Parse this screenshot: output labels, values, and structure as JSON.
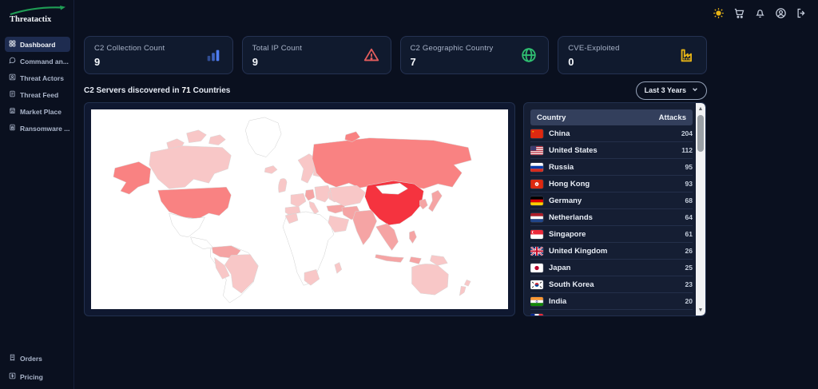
{
  "brand": {
    "name": "Threatactix"
  },
  "topbar": {
    "icons": [
      "theme-sun",
      "cart",
      "notifications",
      "account",
      "logout"
    ]
  },
  "sidebar": {
    "items": [
      {
        "label": "Dashboard",
        "icon": "dashboard-grid",
        "active": true
      },
      {
        "label": "Command an...",
        "icon": "chat-bubble",
        "active": false
      },
      {
        "label": "Threat Actors",
        "icon": "user-card",
        "active": false
      },
      {
        "label": "Threat Feed",
        "icon": "document",
        "active": false
      },
      {
        "label": "Market Place",
        "icon": "storefront",
        "active": false
      },
      {
        "label": "Ransomware ...",
        "icon": "file-lock",
        "active": false
      }
    ],
    "bottom_items": [
      {
        "label": "Orders",
        "icon": "receipt"
      },
      {
        "label": "Pricing",
        "icon": "dollar-box"
      }
    ]
  },
  "stats": [
    {
      "label": "C2 Collection Count",
      "value": "9",
      "icon": "bar-chart",
      "color": "#4f7df3"
    },
    {
      "label": "Total IP Count",
      "value": "9",
      "icon": "alert-triangle",
      "color": "#e35d5d"
    },
    {
      "label": "C2 Geographic Country",
      "value": "7",
      "icon": "globe",
      "color": "#2fbf71"
    },
    {
      "label": "CVE-Exploited",
      "value": "0",
      "icon": "factory",
      "color": "#e7b416"
    }
  ],
  "section": {
    "title_prefix": "C2 Servers discovered in",
    "title_count": "71",
    "title_suffix": "Countries",
    "range_value": "Last 3 Years"
  },
  "map": {
    "palette": {
      "highest": "#f5333f",
      "high": "#f98282",
      "medium": "#f5a4a4",
      "low": "#f8c7c7",
      "none": "#ffffff",
      "border": "#d8d8d8"
    }
  },
  "countries_table": {
    "headers": [
      "Country",
      "Attacks"
    ],
    "rows": [
      {
        "flag": "cn",
        "country": "China",
        "attacks": 204
      },
      {
        "flag": "us",
        "country": "United States",
        "attacks": 112
      },
      {
        "flag": "ru",
        "country": "Russia",
        "attacks": 95
      },
      {
        "flag": "hk",
        "country": "Hong Kong",
        "attacks": 93
      },
      {
        "flag": "de",
        "country": "Germany",
        "attacks": 68
      },
      {
        "flag": "nl",
        "country": "Netherlands",
        "attacks": 64
      },
      {
        "flag": "sg",
        "country": "Singapore",
        "attacks": 61
      },
      {
        "flag": "gb",
        "country": "United Kingdom",
        "attacks": 26
      },
      {
        "flag": "jp",
        "country": "Japan",
        "attacks": 25
      },
      {
        "flag": "kr",
        "country": "South Korea",
        "attacks": 23
      },
      {
        "flag": "in",
        "country": "India",
        "attacks": 20
      }
    ],
    "partial_row": {
      "flag": "partial"
    }
  }
}
